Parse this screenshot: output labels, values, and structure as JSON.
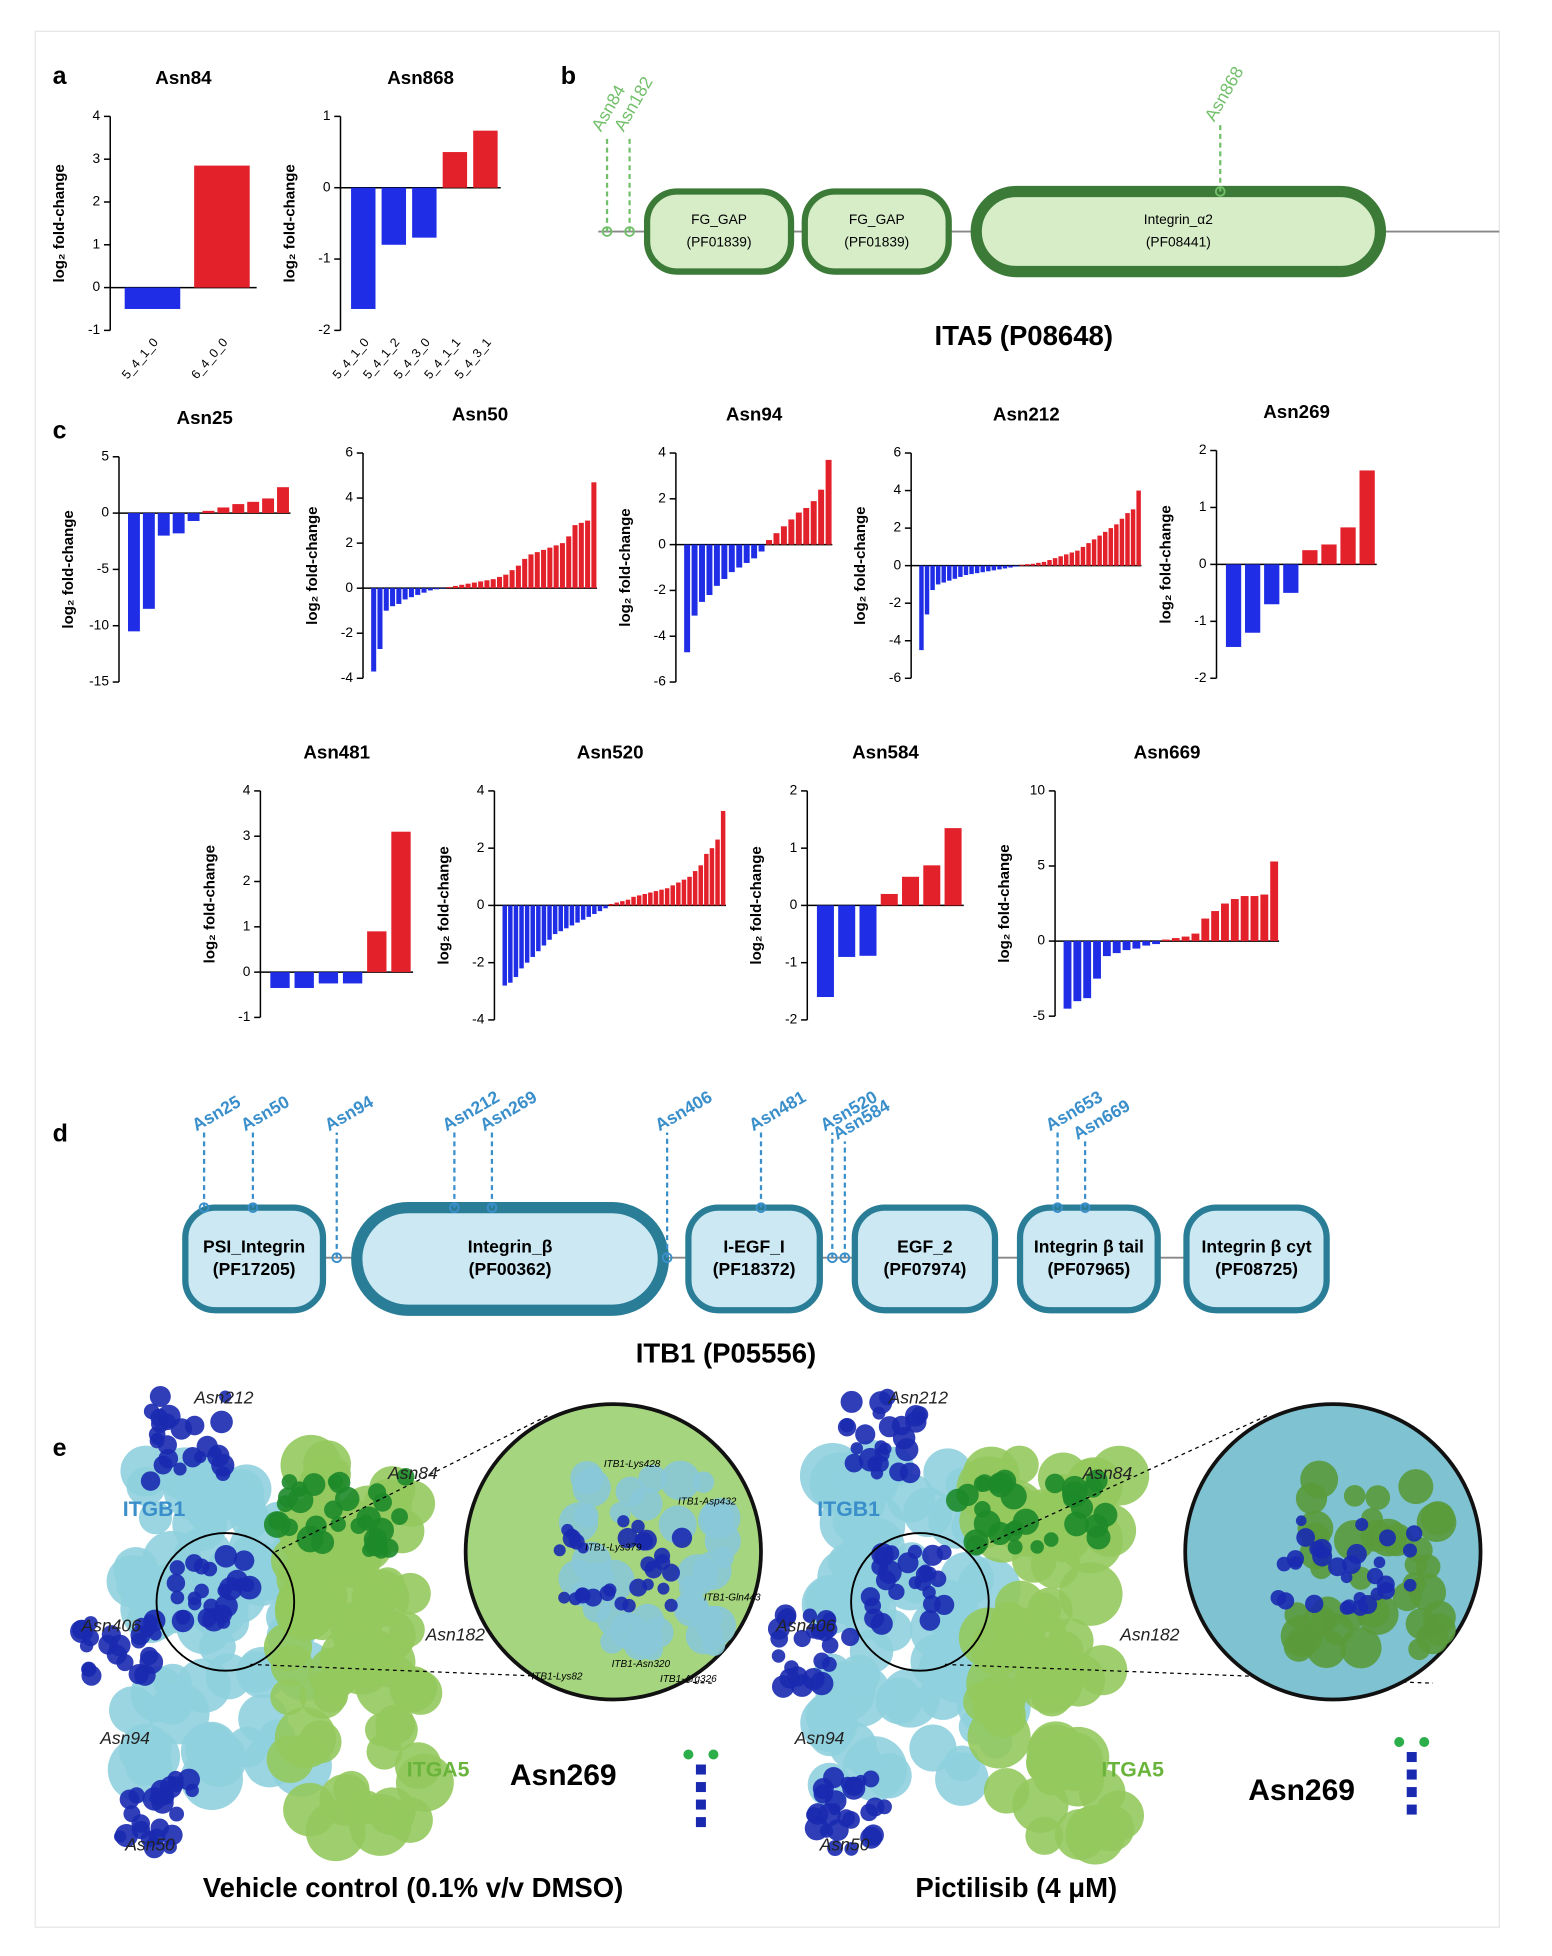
{
  "panel_labels": [
    "a",
    "b",
    "c",
    "d",
    "e"
  ],
  "chart_data": [
    {
      "type": "bar",
      "title": "Asn84",
      "ylabel": "log₂ fold-change",
      "categories": [
        "5_4_1_0",
        "6_4_0_0"
      ],
      "values": [
        -0.5,
        2.85
      ],
      "ylim": [
        -1,
        4
      ],
      "yticks": [
        -1,
        0,
        1,
        2,
        3,
        4
      ],
      "color_negative": "#1f2ee6",
      "color_positive": "#e3212b"
    },
    {
      "type": "bar",
      "title": "Asn868",
      "ylabel": "log₂ fold-change",
      "categories": [
        "5_4_1_0",
        "5_4_1_2",
        "5_4_3_0",
        "5_4_1_1",
        "5_4_3_1"
      ],
      "values": [
        -1.7,
        -0.8,
        -0.7,
        0.5,
        0.8
      ],
      "ylim": [
        -2,
        1
      ],
      "yticks": [
        -2,
        -1,
        0,
        1
      ],
      "color_negative": "#1f2ee6",
      "color_positive": "#e3212b"
    },
    {
      "type": "bar",
      "title": "Asn25",
      "ylabel": "log₂ fold-change",
      "categories": [
        null,
        null,
        null,
        null,
        null,
        null,
        null,
        null,
        null,
        null,
        null
      ],
      "values": [
        -10.5,
        -8.5,
        -2,
        -1.8,
        -0.7,
        0.2,
        0.5,
        0.8,
        1,
        1.3,
        2.3
      ],
      "ylim": [
        -15,
        5
      ],
      "yticks": [
        -15,
        -10,
        -5,
        0,
        5
      ],
      "color_negative": "#1f2ee6",
      "color_positive": "#e3212b"
    },
    {
      "type": "bar",
      "title": "Asn50",
      "ylabel": "log₂ fold-change",
      "categories": [
        null,
        null,
        null,
        null,
        null,
        null,
        null,
        null,
        null,
        null,
        null,
        null,
        null,
        null,
        null,
        null,
        null,
        null,
        null,
        null,
        null,
        null,
        null,
        null,
        null,
        null,
        null,
        null,
        null,
        null,
        null,
        null,
        null,
        null,
        null,
        null
      ],
      "values": [
        -3.7,
        -2.7,
        -1.0,
        -0.8,
        -0.7,
        -0.5,
        -0.4,
        -0.3,
        -0.2,
        -0.1,
        -0.05,
        -0.02,
        0.05,
        0.1,
        0.15,
        0.2,
        0.25,
        0.3,
        0.35,
        0.4,
        0.5,
        0.6,
        0.8,
        1.0,
        1.3,
        1.5,
        1.6,
        1.7,
        1.8,
        1.9,
        2.0,
        2.3,
        2.8,
        2.9,
        3.0,
        4.7
      ],
      "ylim": [
        -4,
        6
      ],
      "yticks": [
        -4,
        -2,
        0,
        2,
        4,
        6
      ],
      "color_negative": "#1f2ee6",
      "color_positive": "#e3212b"
    },
    {
      "type": "bar",
      "title": "Asn94",
      "ylabel": "log₂ fold-change",
      "categories": [
        null,
        null,
        null,
        null,
        null,
        null,
        null,
        null,
        null,
        null,
        null,
        null,
        null,
        null,
        null,
        null,
        null,
        null,
        null,
        null
      ],
      "values": [
        -4.7,
        -3.1,
        -2.5,
        -2.2,
        -1.8,
        -1.5,
        -1.2,
        -1.0,
        -0.8,
        -0.6,
        -0.3,
        0.2,
        0.5,
        0.8,
        1.1,
        1.4,
        1.6,
        1.9,
        2.4,
        3.7
      ],
      "ylim": [
        -6,
        4
      ],
      "yticks": [
        -6,
        -4,
        -2,
        0,
        2,
        4
      ],
      "color_negative": "#1f2ee6",
      "color_positive": "#e3212b"
    },
    {
      "type": "bar",
      "title": "Asn212",
      "ylabel": "log₂ fold-change",
      "categories": [
        null,
        null,
        null,
        null,
        null,
        null,
        null,
        null,
        null,
        null,
        null,
        null,
        null,
        null,
        null,
        null,
        null,
        null,
        null,
        null,
        null,
        null,
        null,
        null,
        null,
        null,
        null,
        null,
        null,
        null,
        null,
        null,
        null,
        null,
        null,
        null,
        null,
        null,
        null,
        null
      ],
      "values": [
        -4.5,
        -2.6,
        -1.3,
        -1.0,
        -0.9,
        -0.8,
        -0.7,
        -0.6,
        -0.5,
        -0.45,
        -0.4,
        -0.35,
        -0.3,
        -0.25,
        -0.2,
        -0.15,
        -0.1,
        -0.05,
        0.05,
        0.08,
        0.1,
        0.15,
        0.2,
        0.3,
        0.4,
        0.5,
        0.6,
        0.7,
        0.8,
        1.0,
        1.2,
        1.4,
        1.6,
        1.8,
        2.0,
        2.2,
        2.5,
        2.8,
        3.0,
        4.0
      ],
      "ylim": [
        -6,
        6
      ],
      "yticks": [
        -6,
        -4,
        -2,
        0,
        2,
        4,
        6
      ],
      "color_negative": "#1f2ee6",
      "color_positive": "#e3212b"
    },
    {
      "type": "bar",
      "title": "Asn269",
      "ylabel": "log₂ fold-change",
      "categories": [
        null,
        null,
        null,
        null,
        null,
        null,
        null,
        null
      ],
      "values": [
        -1.45,
        -1.2,
        -0.7,
        -0.5,
        0.25,
        0.35,
        0.65,
        1.65
      ],
      "ylim": [
        -2,
        2
      ],
      "yticks": [
        -2,
        -1,
        0,
        1,
        2
      ],
      "color_negative": "#1f2ee6",
      "color_positive": "#e3212b"
    },
    {
      "type": "bar",
      "title": "Asn481",
      "ylabel": "log₂ fold-change",
      "categories": [
        null,
        null,
        null,
        null,
        null,
        null
      ],
      "values": [
        -0.35,
        -0.35,
        -0.25,
        -0.25,
        0.9,
        3.1
      ],
      "ylim": [
        -1,
        4
      ],
      "yticks": [
        -1,
        0,
        1,
        2,
        3,
        4
      ],
      "color_negative": "#1f2ee6",
      "color_positive": "#e3212b"
    },
    {
      "type": "bar",
      "title": "Asn520",
      "ylabel": "log₂ fold-change",
      "categories": [
        null,
        null,
        null,
        null,
        null,
        null,
        null,
        null,
        null,
        null,
        null,
        null,
        null,
        null,
        null,
        null,
        null,
        null,
        null,
        null,
        null,
        null,
        null,
        null,
        null,
        null,
        null,
        null,
        null,
        null,
        null,
        null,
        null,
        null,
        null,
        null,
        null,
        null,
        null,
        null
      ],
      "values": [
        -2.8,
        -2.7,
        -2.5,
        -2.2,
        -2.0,
        -1.8,
        -1.6,
        -1.4,
        -1.2,
        -1.0,
        -0.9,
        -0.8,
        -0.7,
        -0.6,
        -0.5,
        -0.4,
        -0.3,
        -0.2,
        -0.1,
        0.05,
        0.1,
        0.15,
        0.2,
        0.3,
        0.35,
        0.4,
        0.45,
        0.5,
        0.55,
        0.6,
        0.7,
        0.8,
        0.9,
        1.0,
        1.2,
        1.4,
        1.8,
        2.0,
        2.3,
        3.3
      ],
      "ylim": [
        -4,
        4
      ],
      "yticks": [
        -4,
        -2,
        0,
        2,
        4
      ],
      "color_negative": "#1f2ee6",
      "color_positive": "#e3212b"
    },
    {
      "type": "bar",
      "title": "Asn584",
      "ylabel": "log₂ fold-change",
      "categories": [
        null,
        null,
        null,
        null,
        null,
        null,
        null
      ],
      "values": [
        -1.6,
        -0.9,
        -0.88,
        0.2,
        0.5,
        0.7,
        1.35
      ],
      "ylim": [
        -2,
        2
      ],
      "yticks": [
        -2,
        -1,
        0,
        1,
        2
      ],
      "color_negative": "#1f2ee6",
      "color_positive": "#e3212b"
    },
    {
      "type": "bar",
      "title": "Asn669",
      "ylabel": "log₂ fold-change",
      "categories": [
        null,
        null,
        null,
        null,
        null,
        null,
        null,
        null,
        null,
        null,
        null,
        null,
        null,
        null,
        null,
        null,
        null,
        null,
        null,
        null,
        null,
        null
      ],
      "values": [
        -4.5,
        -4.0,
        -3.8,
        -2.5,
        -1.0,
        -0.8,
        -0.6,
        -0.5,
        -0.3,
        -0.2,
        0.1,
        0.2,
        0.3,
        0.5,
        1.5,
        2.0,
        2.5,
        2.8,
        3.0,
        3.0,
        3.1,
        5.3
      ],
      "ylim": [
        -5,
        10
      ],
      "yticks": [
        -5,
        0,
        5,
        10
      ],
      "color_negative": "#1f2ee6",
      "color_positive": "#e3212b"
    }
  ],
  "ita5": {
    "title": "ITA5 (P08648)",
    "domains": [
      {
        "name": "FG_GAP",
        "id": "(PF01839)"
      },
      {
        "name": "FG_GAP",
        "id": "(PF01839)"
      },
      {
        "name": "Integrin_α2",
        "id": "(PF08441)"
      }
    ],
    "sites": [
      "Asn84",
      "Asn182",
      "Asn868"
    ]
  },
  "itb1": {
    "title": "ITB1 (P05556)",
    "domains": [
      {
        "name": "PSI_Integrin",
        "id": "(PF17205)"
      },
      {
        "name": "Integrin_β",
        "id": "(PF00362)"
      },
      {
        "name": "I-EGF_I",
        "id": "(PF18372)"
      },
      {
        "name": "EGF_2",
        "id": "(PF07974)"
      },
      {
        "name": "Integrin β tail",
        "id": "(PF07965)"
      },
      {
        "name": "Integrin β cyt",
        "id": "(PF08725)"
      }
    ],
    "sites": [
      "Asn25",
      "Asn50",
      "Asn94",
      "Asn212",
      "Asn269",
      "Asn406",
      "Asn481",
      "Asn520",
      "Asn584",
      "Asn653",
      "Asn669"
    ]
  },
  "structures": [
    {
      "caption": "Vehicle control (0.1% v/v DMSO)",
      "site": "Asn269",
      "labels": [
        "Asn212",
        "Asn84",
        "ITGB1",
        "Asn406",
        "Asn182",
        "Asn94",
        "ITGA5",
        "Asn50"
      ],
      "zoom_labels": [
        "ITB1-Lys428",
        "ITB1-Asp432",
        "ITB1-Lys379",
        "ITB1-Gln443",
        "ITB1-Lys82",
        "ITB1-Asn320",
        "ITB1-Arg326"
      ]
    },
    {
      "caption": "Pictilisib (4 μM)",
      "site": "Asn269",
      "labels": [
        "Asn212",
        "Asn84",
        "ITGB1",
        "Asn406",
        "Asn182",
        "Asn94",
        "ITGA5",
        "Asn50"
      ],
      "zoom_labels": []
    }
  ]
}
